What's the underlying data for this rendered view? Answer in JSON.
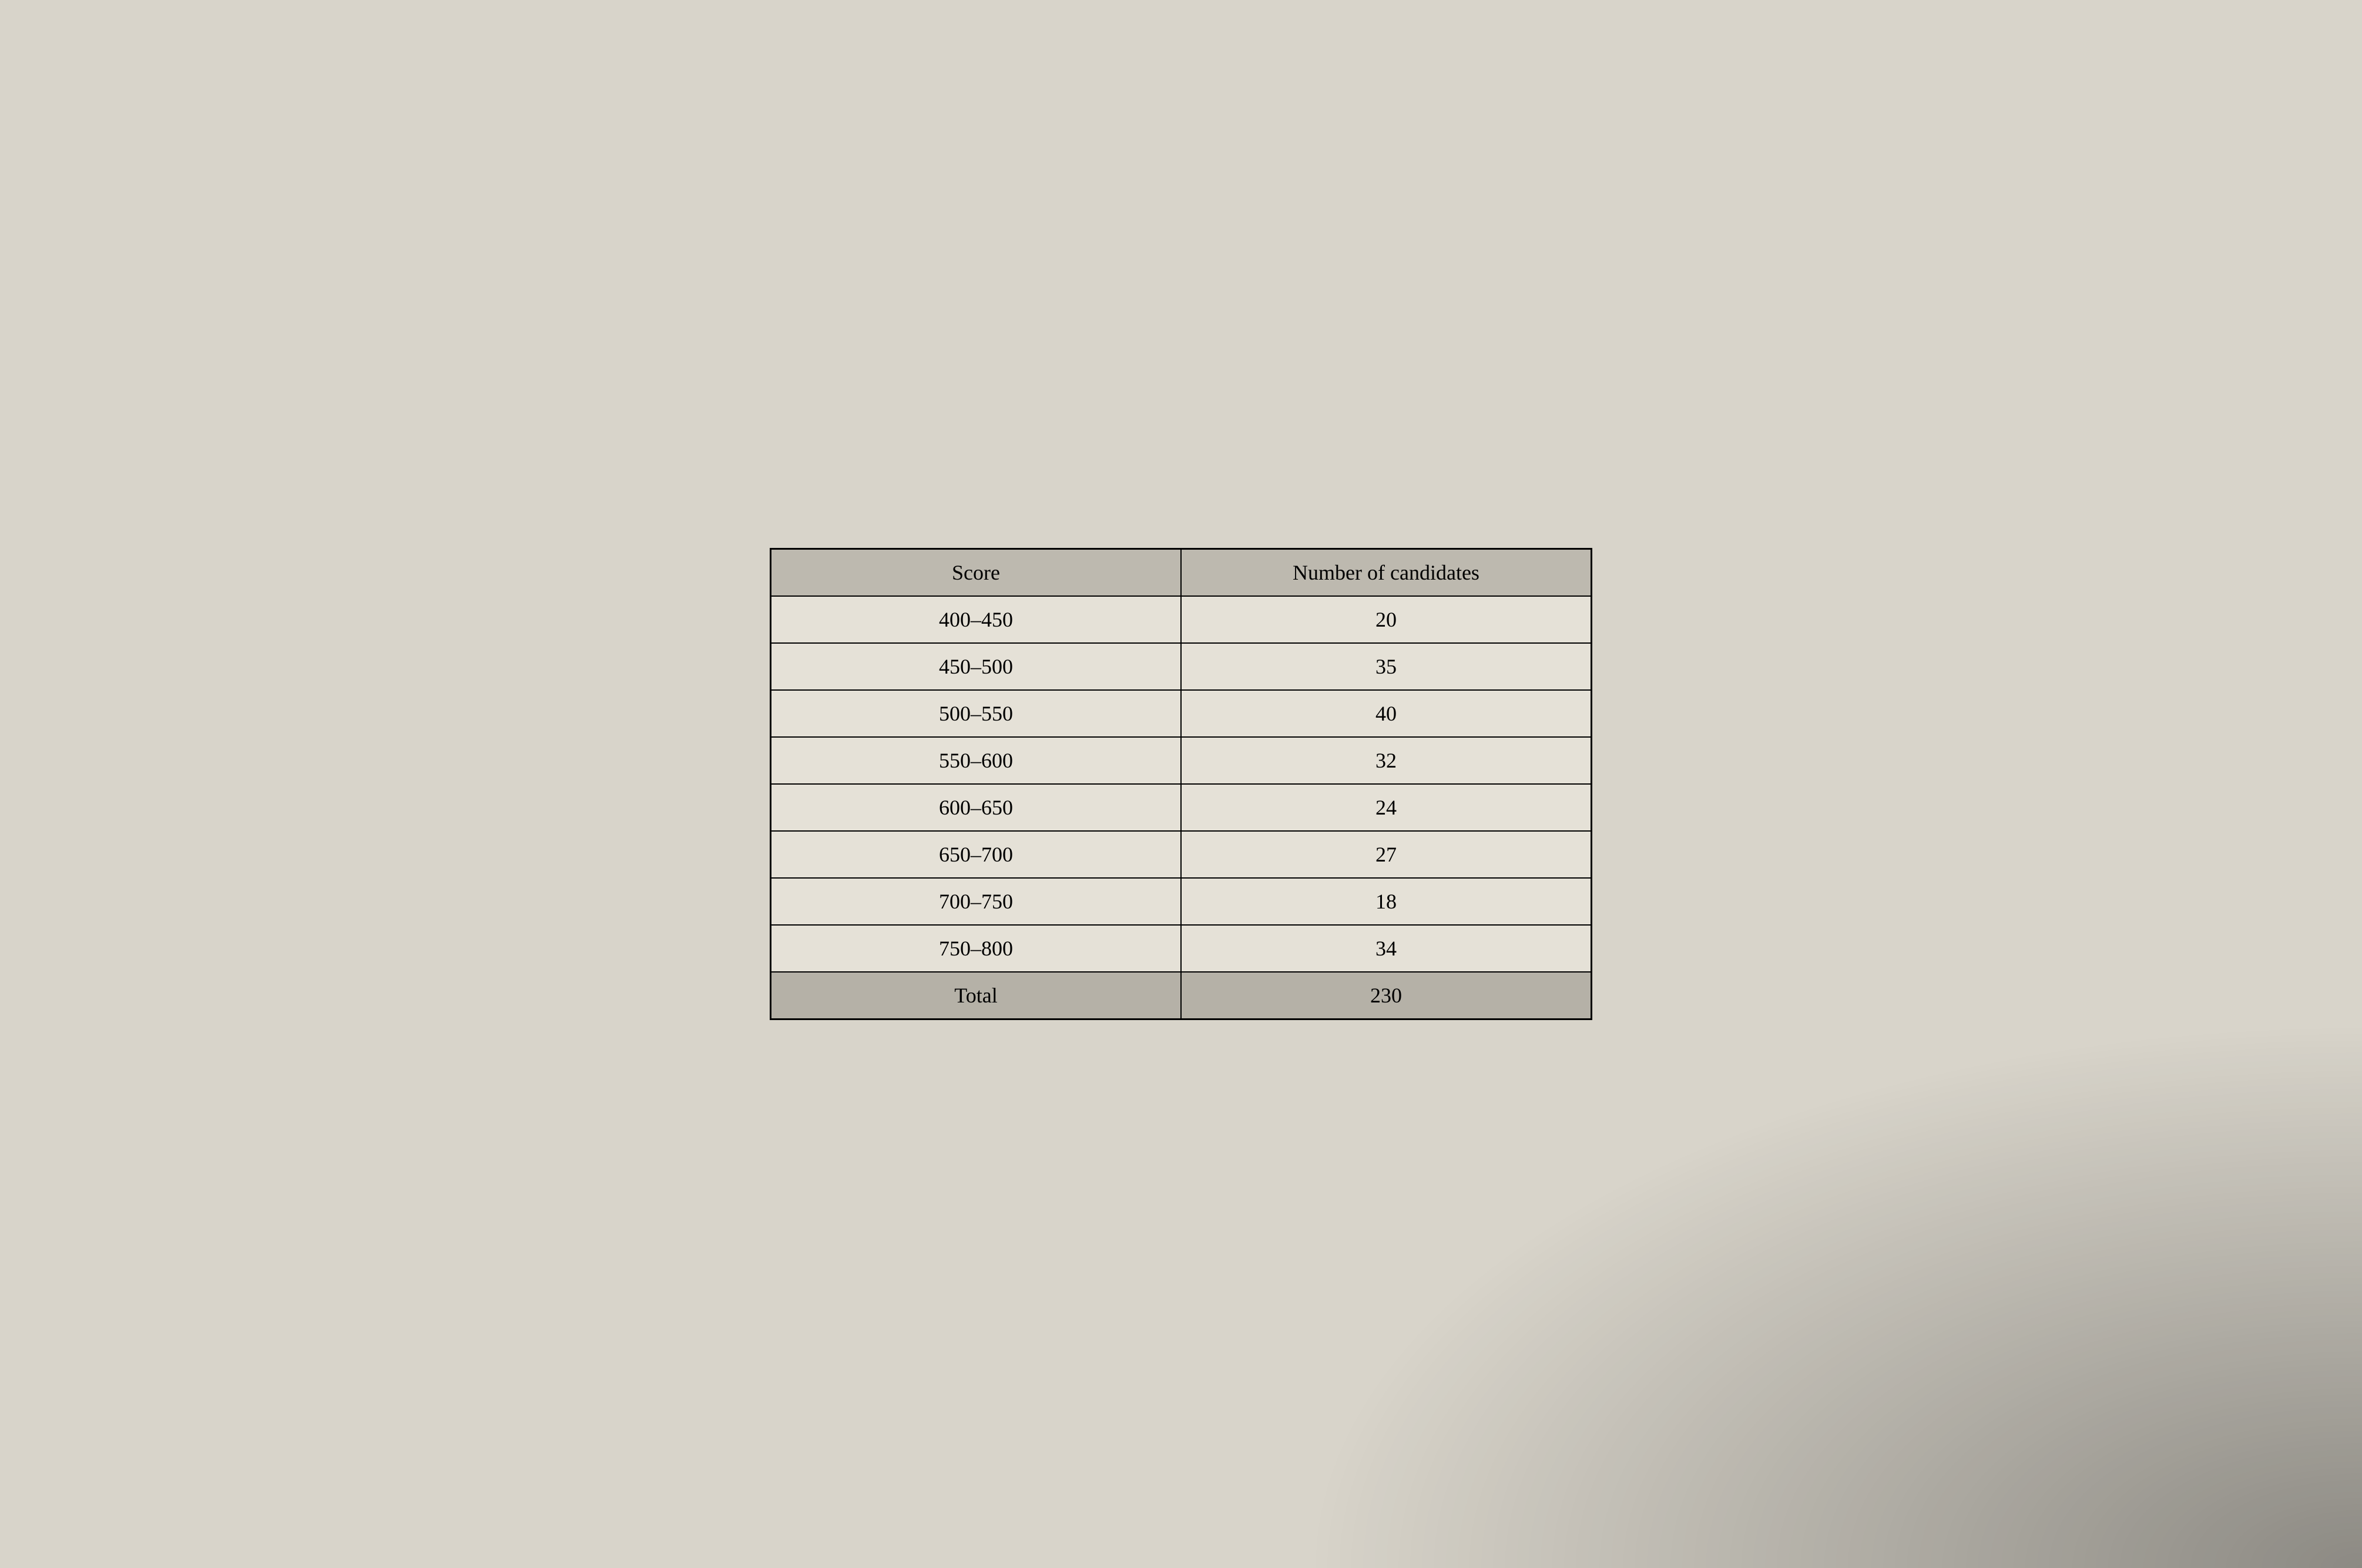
{
  "table": {
    "type": "table",
    "columns": [
      {
        "label": "Score",
        "key": "score",
        "width": "50%",
        "align": "center"
      },
      {
        "label": "Number of candidates",
        "key": "count",
        "width": "50%",
        "align": "center"
      }
    ],
    "rows": [
      {
        "score": "400–450",
        "count": "20"
      },
      {
        "score": "450–500",
        "count": "35"
      },
      {
        "score": "500–550",
        "count": "40"
      },
      {
        "score": "550–600",
        "count": "32"
      },
      {
        "score": "600–650",
        "count": "24"
      },
      {
        "score": "650–700",
        "count": "27"
      },
      {
        "score": "700–750",
        "count": "18"
      },
      {
        "score": "750–800",
        "count": "34"
      }
    ],
    "total_row": {
      "score": "Total",
      "count": "230"
    },
    "styling": {
      "header_bg": "#c0bcb2",
      "body_bg": "#e8e4da",
      "total_bg": "#b8b4aa",
      "page_bg": "#d8d4ca",
      "border_color": "#000000",
      "outer_border_width": 3,
      "inner_border_width": 2,
      "font_family": "Georgia, 'Times New Roman', serif",
      "font_size": 36,
      "cell_padding_vertical": 18,
      "cell_padding_horizontal": 24
    }
  }
}
